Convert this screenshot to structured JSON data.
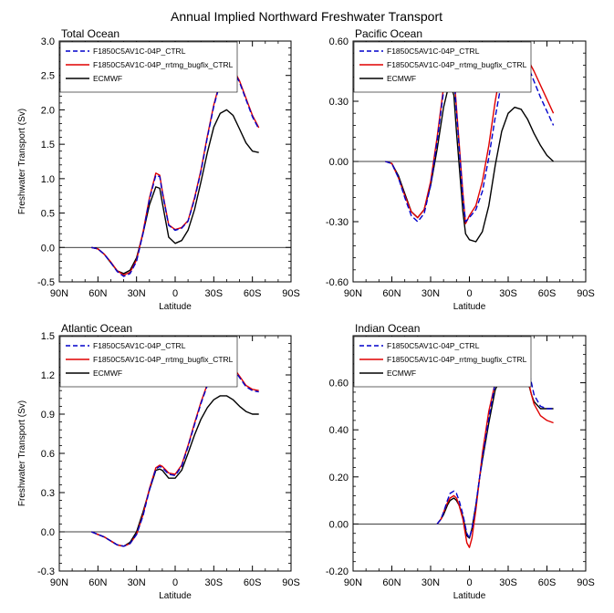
{
  "figure_title": "Annual Implied Northward Freshwater Transport",
  "colors": {
    "ctrl": "#0000cc",
    "bugfix": "#e00000",
    "ecmwf": "#000000"
  },
  "chart_data": [
    {
      "type": "line",
      "title": "Total Ocean",
      "xlabel": "Latitude",
      "ylabel": "Freshwater Transport (Sv)",
      "xlim": [
        90,
        -90
      ],
      "x_ticks": [
        90,
        60,
        30,
        0,
        -30,
        -60,
        -90
      ],
      "x_tick_labels": [
        "90N",
        "60N",
        "30N",
        "0",
        "30S",
        "60S",
        "90S"
      ],
      "ylim": [
        -0.5,
        3.0
      ],
      "y_ticks": [
        -0.5,
        0.0,
        0.5,
        1.0,
        1.5,
        2.0,
        2.5,
        3.0
      ],
      "y_tick_labels": [
        "-0.5",
        "0.0",
        "0.5",
        "1.0",
        "1.5",
        "2.0",
        "2.5",
        "3.0"
      ],
      "zero_line": true,
      "legend": "top-left",
      "series": [
        {
          "name": "F1850C5AV1C-04P_CTRL",
          "style": "dashed",
          "color": "#0000cc",
          "x": [
            65,
            60,
            55,
            50,
            45,
            40,
            35,
            30,
            25,
            20,
            15,
            12,
            10,
            5,
            0,
            -5,
            -10,
            -15,
            -20,
            -25,
            -30,
            -35,
            -40,
            -45,
            -50,
            -55,
            -60,
            -65
          ],
          "y": [
            0.0,
            -0.02,
            -0.1,
            -0.22,
            -0.35,
            -0.42,
            -0.38,
            -0.2,
            0.2,
            0.7,
            1.05,
            1.03,
            0.8,
            0.32,
            0.25,
            0.28,
            0.38,
            0.7,
            1.1,
            1.6,
            2.05,
            2.4,
            2.58,
            2.58,
            2.4,
            2.15,
            1.9,
            1.72
          ]
        },
        {
          "name": "F1850C5AV1C-04P_rrtmg_bugfix_CTRL",
          "style": "solid",
          "color": "#e00000",
          "x": [
            65,
            60,
            55,
            50,
            45,
            40,
            35,
            30,
            25,
            20,
            15,
            12,
            10,
            5,
            0,
            -5,
            -10,
            -15,
            -20,
            -25,
            -30,
            -35,
            -40,
            -45,
            -50,
            -55,
            -60,
            -65
          ],
          "y": [
            0.0,
            -0.02,
            -0.1,
            -0.21,
            -0.34,
            -0.4,
            -0.36,
            -0.18,
            0.22,
            0.72,
            1.08,
            1.05,
            0.82,
            0.33,
            0.26,
            0.29,
            0.39,
            0.72,
            1.12,
            1.62,
            2.07,
            2.42,
            2.6,
            2.6,
            2.42,
            2.17,
            1.92,
            1.74
          ]
        },
        {
          "name": "ECMWF",
          "style": "solid",
          "color": "#000000",
          "x": [
            65,
            60,
            55,
            50,
            45,
            40,
            35,
            30,
            25,
            20,
            15,
            12,
            10,
            5,
            0,
            -5,
            -10,
            -15,
            -20,
            -25,
            -30,
            -35,
            -40,
            -45,
            -50,
            -55,
            -60,
            -65
          ],
          "y": [
            0.0,
            -0.02,
            -0.1,
            -0.22,
            -0.34,
            -0.38,
            -0.33,
            -0.15,
            0.2,
            0.62,
            0.88,
            0.86,
            0.65,
            0.15,
            0.06,
            0.1,
            0.25,
            0.55,
            0.95,
            1.38,
            1.75,
            1.95,
            2.0,
            1.92,
            1.72,
            1.52,
            1.4,
            1.38
          ]
        }
      ]
    },
    {
      "type": "line",
      "title": "Pacific Ocean",
      "xlabel": "Latitude",
      "ylabel": "",
      "xlim": [
        90,
        -90
      ],
      "x_ticks": [
        90,
        60,
        30,
        0,
        -30,
        -60,
        -90
      ],
      "x_tick_labels": [
        "90N",
        "60N",
        "30N",
        "0",
        "30S",
        "60S",
        "90S"
      ],
      "ylim": [
        -0.6,
        0.6
      ],
      "y_ticks": [
        -0.6,
        -0.3,
        0.0,
        0.3,
        0.6
      ],
      "y_tick_labels": [
        "-0.60",
        "-0.30",
        "0.00",
        "0.30",
        "0.60"
      ],
      "zero_line": true,
      "legend": "top-left",
      "series": [
        {
          "name": "F1850C5AV1C-04P_CTRL",
          "style": "dashed",
          "color": "#0000cc",
          "x": [
            65,
            60,
            55,
            50,
            45,
            40,
            35,
            30,
            25,
            20,
            17,
            14,
            12,
            10,
            5,
            3,
            0,
            -5,
            -10,
            -15,
            -20,
            -25,
            -30,
            -35,
            -40,
            -45,
            -50,
            -55,
            -60,
            -65
          ],
          "y": [
            0.0,
            -0.01,
            -0.08,
            -0.18,
            -0.27,
            -0.3,
            -0.26,
            -0.12,
            0.1,
            0.35,
            0.46,
            0.47,
            0.42,
            0.25,
            -0.18,
            -0.3,
            -0.28,
            -0.24,
            -0.15,
            0.02,
            0.22,
            0.4,
            0.5,
            0.54,
            0.53,
            0.48,
            0.4,
            0.32,
            0.25,
            0.18
          ]
        },
        {
          "name": "F1850C5AV1C-04P_rrtmg_bugfix_CTRL",
          "style": "solid",
          "color": "#e00000",
          "x": [
            65,
            60,
            55,
            50,
            45,
            40,
            35,
            30,
            25,
            20,
            17,
            14,
            12,
            10,
            5,
            3,
            0,
            -5,
            -10,
            -15,
            -20,
            -25,
            -30,
            -35,
            -40,
            -45,
            -50,
            -55,
            -60,
            -65
          ],
          "y": [
            0.0,
            -0.01,
            -0.08,
            -0.17,
            -0.25,
            -0.28,
            -0.24,
            -0.1,
            0.12,
            0.37,
            0.48,
            0.49,
            0.44,
            0.27,
            -0.16,
            -0.31,
            -0.27,
            -0.22,
            -0.1,
            0.08,
            0.3,
            0.48,
            0.56,
            0.58,
            0.56,
            0.51,
            0.45,
            0.38,
            0.31,
            0.24
          ]
        },
        {
          "name": "ECMWF",
          "style": "solid",
          "color": "#000000",
          "x": [
            65,
            60,
            55,
            50,
            45,
            40,
            35,
            30,
            25,
            20,
            17,
            14,
            12,
            10,
            5,
            3,
            0,
            -5,
            -10,
            -15,
            -20,
            -25,
            -30,
            -35,
            -40,
            -45,
            -50,
            -55,
            -60,
            -65
          ],
          "y": [
            0.0,
            -0.01,
            -0.07,
            -0.16,
            -0.25,
            -0.28,
            -0.24,
            -0.12,
            0.06,
            0.27,
            0.35,
            0.37,
            0.33,
            0.15,
            -0.25,
            -0.36,
            -0.39,
            -0.4,
            -0.35,
            -0.22,
            -0.02,
            0.15,
            0.24,
            0.27,
            0.26,
            0.21,
            0.14,
            0.08,
            0.03,
            0.0
          ]
        }
      ]
    },
    {
      "type": "line",
      "title": "Atlantic Ocean",
      "xlabel": "Latitude",
      "ylabel": "Freshwater Transport (Sv)",
      "xlim": [
        90,
        -90
      ],
      "x_ticks": [
        90,
        60,
        30,
        0,
        -30,
        -60,
        -90
      ],
      "x_tick_labels": [
        "90N",
        "60N",
        "30N",
        "0",
        "30S",
        "60S",
        "90S"
      ],
      "ylim": [
        -0.3,
        1.5
      ],
      "y_ticks": [
        -0.3,
        0.0,
        0.3,
        0.6,
        0.9,
        1.2,
        1.5
      ],
      "y_tick_labels": [
        "-0.3",
        "0.0",
        "0.3",
        "0.6",
        "0.9",
        "1.2",
        "1.5"
      ],
      "zero_line": true,
      "legend": "top-left",
      "series": [
        {
          "name": "F1850C5AV1C-04P_CTRL",
          "style": "dashed",
          "color": "#0000cc",
          "x": [
            65,
            60,
            55,
            50,
            45,
            40,
            35,
            30,
            25,
            20,
            15,
            12,
            10,
            5,
            0,
            -5,
            -10,
            -15,
            -20,
            -25,
            -30,
            -35,
            -40,
            -45,
            -50,
            -55,
            -60,
            -65
          ],
          "y": [
            0.0,
            -0.02,
            -0.04,
            -0.07,
            -0.1,
            -0.11,
            -0.09,
            -0.02,
            0.12,
            0.32,
            0.48,
            0.5,
            0.49,
            0.44,
            0.43,
            0.5,
            0.65,
            0.82,
            0.98,
            1.12,
            1.22,
            1.27,
            1.28,
            1.25,
            1.18,
            1.11,
            1.08,
            1.07
          ]
        },
        {
          "name": "F1850C5AV1C-04P_rrtmg_bugfix_CTRL",
          "style": "solid",
          "color": "#e00000",
          "x": [
            65,
            60,
            55,
            50,
            45,
            40,
            35,
            30,
            25,
            20,
            15,
            12,
            10,
            5,
            0,
            -5,
            -10,
            -15,
            -20,
            -25,
            -30,
            -35,
            -40,
            -45,
            -50,
            -55,
            -60,
            -65
          ],
          "y": [
            0.0,
            -0.02,
            -0.04,
            -0.07,
            -0.1,
            -0.11,
            -0.09,
            -0.02,
            0.13,
            0.33,
            0.49,
            0.51,
            0.5,
            0.45,
            0.44,
            0.51,
            0.66,
            0.83,
            0.99,
            1.13,
            1.23,
            1.28,
            1.29,
            1.26,
            1.19,
            1.12,
            1.09,
            1.08
          ]
        },
        {
          "name": "ECMWF",
          "style": "solid",
          "color": "#000000",
          "x": [
            65,
            60,
            55,
            50,
            45,
            40,
            35,
            30,
            25,
            20,
            15,
            12,
            10,
            5,
            0,
            -5,
            -10,
            -15,
            -20,
            -25,
            -30,
            -35,
            -40,
            -45,
            -50,
            -55,
            -60,
            -65
          ],
          "y": [
            0.0,
            -0.02,
            -0.04,
            -0.07,
            -0.1,
            -0.11,
            -0.08,
            0.0,
            0.15,
            0.32,
            0.47,
            0.48,
            0.47,
            0.41,
            0.41,
            0.47,
            0.6,
            0.74,
            0.86,
            0.95,
            1.01,
            1.04,
            1.04,
            1.01,
            0.96,
            0.92,
            0.9,
            0.9
          ]
        }
      ]
    },
    {
      "type": "line",
      "title": "Indian Ocean",
      "xlabel": "Latitude",
      "ylabel": "",
      "xlim": [
        90,
        -90
      ],
      "x_ticks": [
        90,
        60,
        30,
        0,
        -30,
        -60,
        -90
      ],
      "x_tick_labels": [
        "90N",
        "60N",
        "30N",
        "0",
        "30S",
        "60S",
        "90S"
      ],
      "ylim": [
        -0.2,
        0.8
      ],
      "y_ticks": [
        -0.2,
        0.0,
        0.2,
        0.4,
        0.6,
        0.8
      ],
      "y_tick_labels": [
        "-0.20",
        "0.00",
        "0.20",
        "0.40",
        "0.60",
        ""
      ],
      "zero_line": true,
      "legend": "top-left",
      "series": [
        {
          "name": "F1850C5AV1C-04P_CTRL",
          "style": "dashed",
          "color": "#0000cc",
          "x": [
            25,
            22,
            20,
            17,
            15,
            12,
            10,
            8,
            5,
            2,
            0,
            -2,
            -5,
            -8,
            -10,
            -15,
            -20,
            -25,
            -30,
            -35,
            -38,
            -40,
            -42,
            -45,
            -48,
            -50,
            -55,
            -60,
            -65
          ],
          "y": [
            0.0,
            0.02,
            0.05,
            0.1,
            0.13,
            0.14,
            0.13,
            0.1,
            0.04,
            -0.04,
            -0.06,
            -0.02,
            0.08,
            0.2,
            0.28,
            0.45,
            0.6,
            0.69,
            0.74,
            0.77,
            0.77,
            0.76,
            0.73,
            0.67,
            0.6,
            0.55,
            0.5,
            0.49,
            0.49
          ]
        },
        {
          "name": "F1850C5AV1C-04P_rrtmg_bugfix_CTRL",
          "style": "solid",
          "color": "#e00000",
          "x": [
            25,
            22,
            20,
            17,
            15,
            12,
            10,
            8,
            5,
            2,
            0,
            -2,
            -5,
            -8,
            -10,
            -15,
            -20,
            -25,
            -30,
            -35,
            -38,
            -40,
            -42,
            -45,
            -48,
            -50,
            -55,
            -60,
            -65
          ],
          "y": [
            0.0,
            0.02,
            0.05,
            0.09,
            0.11,
            0.12,
            0.11,
            0.08,
            0.02,
            -0.08,
            -0.1,
            -0.06,
            0.06,
            0.2,
            0.3,
            0.48,
            0.6,
            0.66,
            0.7,
            0.72,
            0.72,
            0.71,
            0.68,
            0.62,
            0.55,
            0.51,
            0.46,
            0.44,
            0.43
          ]
        },
        {
          "name": "ECMWF",
          "style": "solid",
          "color": "#000000",
          "x": [
            25,
            22,
            20,
            17,
            15,
            12,
            10,
            8,
            5,
            2,
            0,
            -2,
            -5,
            -8,
            -10,
            -15,
            -20,
            -25,
            -30,
            -35,
            -38,
            -40,
            -42,
            -45,
            -48,
            -50,
            -55,
            -60,
            -65
          ],
          "y": [
            0.0,
            0.02,
            0.04,
            0.08,
            0.1,
            0.11,
            0.1,
            0.08,
            0.03,
            -0.05,
            -0.06,
            -0.02,
            0.08,
            0.2,
            0.27,
            0.43,
            0.57,
            0.63,
            0.68,
            0.7,
            0.71,
            0.7,
            0.67,
            0.61,
            0.55,
            0.52,
            0.49,
            0.49,
            0.49
          ]
        }
      ]
    }
  ]
}
